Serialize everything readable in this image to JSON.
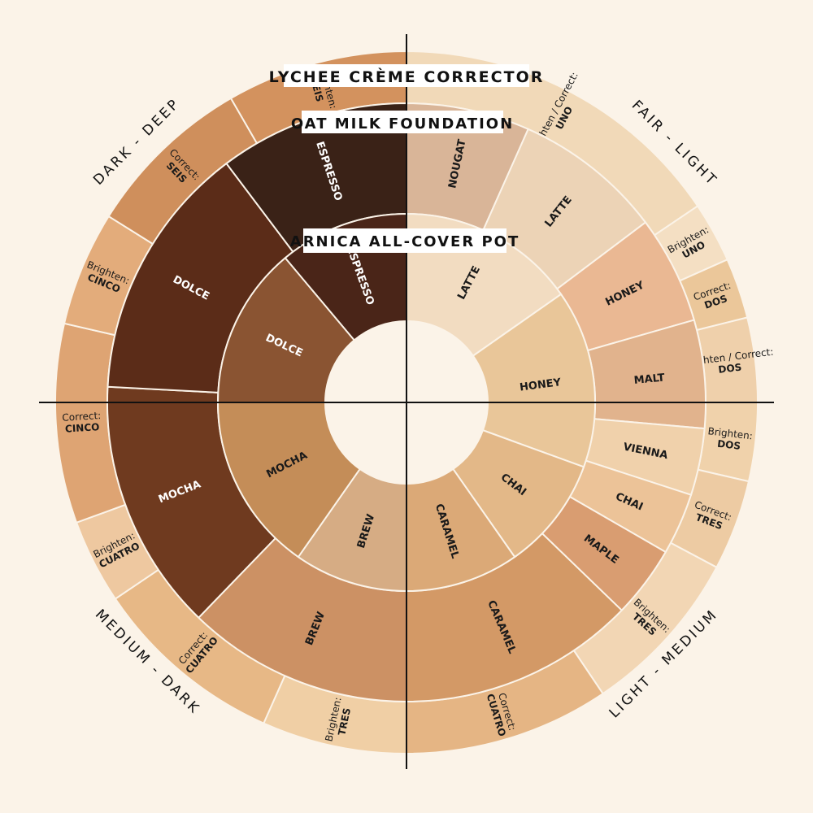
{
  "titles": {
    "outer": "LYCHEE CRÈME CORRECTOR",
    "middle": "OAT MILK FOUNDATION",
    "inner": "ARNICA ALL-COVER POT"
  },
  "quadrants": [
    "FAIR - LIGHT",
    "LIGHT - MEDIUM",
    "MEDIUM - DARK",
    "DARK - DEEP"
  ],
  "outer_ring": [
    {
      "line1": "Brighten / Correct:",
      "line2": "UNO",
      "color": "#f1d9b8",
      "a0": 0,
      "a1": 56
    },
    {
      "line1": "Brighten:",
      "line2": "UNO",
      "color": "#f4dfc3",
      "a0": 56,
      "a1": 66
    },
    {
      "line1": "Correct:",
      "line2": "DOS",
      "color": "#ebc79a",
      "a0": 66,
      "a1": 76
    },
    {
      "line1": "Brighten / Correct:",
      "line2": "DOS",
      "color": "#efd0ab",
      "a0": 76,
      "a1": 90
    },
    {
      "line1": "Brighten:",
      "line2": "DOS",
      "color": "#f0d2ab",
      "a0": 90,
      "a1": 103
    },
    {
      "line1": "Correct:",
      "line2": "TRES",
      "color": "#edcba3",
      "a0": 103,
      "a1": 118
    },
    {
      "line1": "Brighten:",
      "line2": "TRES",
      "color": "#f2d6b4",
      "a0": 118,
      "a1": 146
    },
    {
      "line1": "Correct:",
      "line2": "CUATRO",
      "color": "#e5b584",
      "a0": 146,
      "a1": 180
    },
    {
      "line1": "Brighten:",
      "line2": "TRES",
      "color": "#f0cfa5",
      "a0": 180,
      "a1": 204
    },
    {
      "line1": "Correct:",
      "line2": "CUATRO",
      "color": "#e7b886",
      "a0": 204,
      "a1": 236
    },
    {
      "line1": "Brighten:",
      "line2": "CUATRO",
      "color": "#eec8a0",
      "a0": 236,
      "a1": 250
    },
    {
      "line1": "Correct:",
      "line2": "CINCO",
      "color": "#dea473",
      "a0": 250,
      "a1": 283
    },
    {
      "line1": "Brighten:",
      "line2": "CINCO",
      "color": "#e3ac7b",
      "a0": 283,
      "a1": 302
    },
    {
      "line1": "Correct:",
      "line2": "SEIS",
      "color": "#cf8f5c",
      "a0": 302,
      "a1": 330
    },
    {
      "line1": "Brighten:",
      "line2": "SEIS",
      "color": "#d3925e",
      "a0": 330,
      "a1": 360
    }
  ],
  "middle_ring": [
    {
      "label": "NOUGAT",
      "color": "#d9b598",
      "a0": 0,
      "a1": 24
    },
    {
      "label": "LATTE",
      "color": "#ecd3b6",
      "a0": 24,
      "a1": 53
    },
    {
      "label": "HONEY",
      "color": "#eab893",
      "a0": 53,
      "a1": 74
    },
    {
      "label": "MALT",
      "color": "#e1b38d",
      "a0": 74,
      "a1": 95
    },
    {
      "label": "VIENNA",
      "color": "#f0d1ab",
      "a0": 95,
      "a1": 108
    },
    {
      "label": "CHAI",
      "color": "#ecc398",
      "a0": 108,
      "a1": 120
    },
    {
      "label": "MAPLE",
      "color": "#d99d71",
      "a0": 120,
      "a1": 134
    },
    {
      "label": "CARAMEL",
      "color": "#d39966",
      "a0": 134,
      "a1": 180
    },
    {
      "label": "BREW",
      "color": "#cc9164",
      "a0": 180,
      "a1": 224
    },
    {
      "label": "MOCHA",
      "color": "#6f3a1f",
      "a0": 224,
      "a1": 273
    },
    {
      "label": "DOLCE",
      "color": "#5b2c18",
      "a0": 273,
      "a1": 323
    },
    {
      "label": "ESPRESSO",
      "color": "#3a2217",
      "a0": 323,
      "a1": 360
    }
  ],
  "inner_ring": [
    {
      "label": "LATTE",
      "color": "#f2dcc1",
      "a0": 0,
      "a1": 55
    },
    {
      "label": "HONEY",
      "color": "#e9c699",
      "a0": 55,
      "a1": 110
    },
    {
      "label": "CHAI",
      "color": "#e3b888",
      "a0": 110,
      "a1": 145
    },
    {
      "label": "CARAMEL",
      "color": "#dba977",
      "a0": 145,
      "a1": 180
    },
    {
      "label": "BREW",
      "color": "#d6ac84",
      "a0": 180,
      "a1": 215
    },
    {
      "label": "MOCHA",
      "color": "#c48d58",
      "a0": 215,
      "a1": 270
    },
    {
      "label": "DOLCE",
      "color": "#8a5432",
      "a0": 270,
      "a1": 320
    },
    {
      "label": "ESPRESSO",
      "color": "#4a2518",
      "a0": 320,
      "a1": 360
    }
  ],
  "colors": {
    "background": "#fbf3e8",
    "center": "#fbf3e8",
    "divider": "#fbf3e8",
    "axis": "#111111"
  }
}
